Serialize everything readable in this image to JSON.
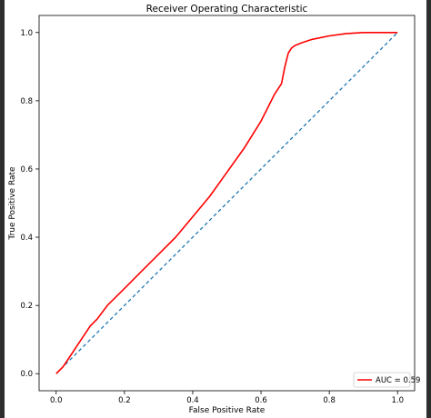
{
  "chart_data": {
    "type": "line",
    "title": "Receiver Operating Characteristic",
    "xlabel": "False Positive Rate",
    "ylabel": "True Positive Rate",
    "xlim": [
      -0.05,
      1.05
    ],
    "ylim": [
      -0.05,
      1.05
    ],
    "xticks": [
      "0.0",
      "0.2",
      "0.4",
      "0.6",
      "0.8",
      "1.0"
    ],
    "yticks": [
      "0.0",
      "0.2",
      "0.4",
      "0.6",
      "0.8",
      "1.0"
    ],
    "grid": false,
    "legend_position": "bottom-right",
    "series": [
      {
        "name": "AUC = 0.59",
        "color": "#ff0000",
        "style": "solid",
        "x": [
          0.0,
          0.02,
          0.04,
          0.06,
          0.08,
          0.1,
          0.12,
          0.15,
          0.2,
          0.25,
          0.3,
          0.35,
          0.4,
          0.45,
          0.5,
          0.55,
          0.6,
          0.64,
          0.66,
          0.67,
          0.68,
          0.69,
          0.7,
          0.72,
          0.75,
          0.8,
          0.85,
          0.9,
          1.0
        ],
        "y": [
          0.0,
          0.02,
          0.05,
          0.08,
          0.11,
          0.14,
          0.16,
          0.2,
          0.25,
          0.3,
          0.35,
          0.4,
          0.46,
          0.52,
          0.59,
          0.66,
          0.74,
          0.82,
          0.85,
          0.9,
          0.94,
          0.955,
          0.962,
          0.97,
          0.98,
          0.99,
          0.997,
          1.0,
          1.0
        ]
      },
      {
        "name": "",
        "color": "#1f77b4",
        "style": "dashed",
        "x": [
          0.0,
          1.0
        ],
        "y": [
          0.0,
          1.0
        ]
      }
    ]
  }
}
